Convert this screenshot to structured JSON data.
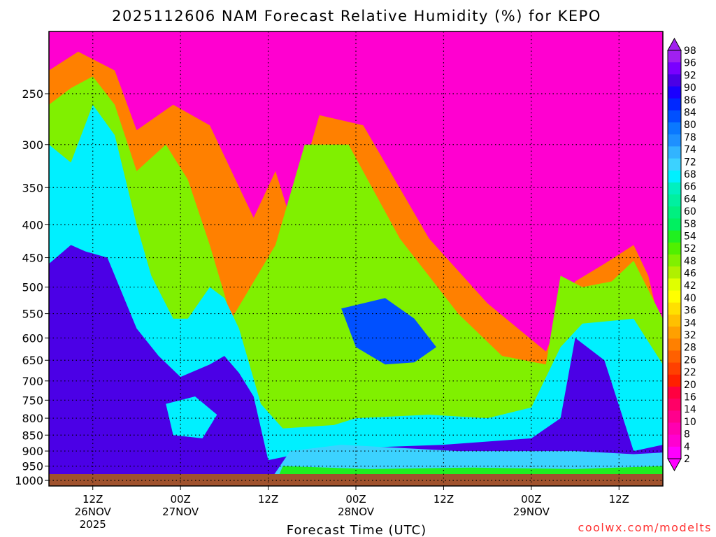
{
  "chart_data": {
    "type": "heatmap",
    "title": "2025112606 NAM Forecast Relative Humidity (%) for KEPO",
    "xlabel": "Forecast Time (UTC)",
    "ylabel": "",
    "y_ticks": [
      "250",
      "300",
      "350",
      "400",
      "450",
      "500",
      "550",
      "600",
      "650",
      "700",
      "750",
      "800",
      "850",
      "900",
      "950",
      "1000"
    ],
    "y_tick_values": [
      250,
      300,
      350,
      400,
      450,
      500,
      550,
      600,
      650,
      700,
      750,
      800,
      850,
      900,
      950,
      1000
    ],
    "ylim": [
      200,
      1020
    ],
    "y_scale": "log",
    "x_ticks": [
      {
        "hours": 6,
        "label": "12Z",
        "date": "26NOV",
        "year": "2025"
      },
      {
        "hours": 18,
        "label": "00Z",
        "date": "27NOV",
        "year": ""
      },
      {
        "hours": 30,
        "label": "12Z",
        "date": "",
        "year": ""
      },
      {
        "hours": 42,
        "label": "00Z",
        "date": "28NOV",
        "year": ""
      },
      {
        "hours": 54,
        "label": "12Z",
        "date": "",
        "year": ""
      },
      {
        "hours": 66,
        "label": "00Z",
        "date": "29NOV",
        "year": ""
      },
      {
        "hours": 78,
        "label": "12Z",
        "date": "",
        "year": ""
      }
    ],
    "xlim": [
      0,
      84
    ],
    "grid": true,
    "colorbar": {
      "position": "right",
      "levels": [
        "98",
        "96",
        "92",
        "90",
        "86",
        "84",
        "80",
        "78",
        "74",
        "72",
        "68",
        "66",
        "64",
        "60",
        "58",
        "54",
        "52",
        "48",
        "46",
        "42",
        "40",
        "36",
        "34",
        "32",
        "28",
        "26",
        "22",
        "20",
        "16",
        "14",
        "10",
        "8",
        "4",
        "2"
      ],
      "colors": [
        "#a020f0",
        "#7a00ff",
        "#4b00e6",
        "#1a00ff",
        "#0028ff",
        "#0050ff",
        "#0a78ff",
        "#1e90ff",
        "#32b4ff",
        "#3cd2ff",
        "#00f0ff",
        "#00f0c0",
        "#00f0a0",
        "#00f080",
        "#00f060",
        "#20f020",
        "#50f000",
        "#80f000",
        "#b0f000",
        "#e0ff00",
        "#ffff00",
        "#ffe000",
        "#ffc000",
        "#ffa000",
        "#ff8000",
        "#ff6000",
        "#ff4000",
        "#ff2000",
        "#ff0040",
        "#ff0066",
        "#ff008c",
        "#ff00b0",
        "#ff00d0",
        "#ff00ff"
      ]
    },
    "ground": {
      "color": "#a0522d"
    },
    "regions": [
      {
        "value": 6,
        "polygon": [
          [
            0,
            200
          ],
          [
            84,
            200
          ],
          [
            84,
            1010
          ],
          [
            0,
            1010
          ]
        ]
      },
      {
        "value": 30,
        "polygon": [
          [
            0,
            230
          ],
          [
            4,
            215
          ],
          [
            9,
            230
          ],
          [
            12,
            285
          ],
          [
            17,
            260
          ],
          [
            22,
            280
          ],
          [
            28,
            390
          ],
          [
            31,
            330
          ],
          [
            33,
            390
          ],
          [
            37,
            270
          ],
          [
            43,
            280
          ],
          [
            52,
            420
          ],
          [
            60,
            530
          ],
          [
            68,
            630
          ],
          [
            72,
            490
          ],
          [
            76,
            460
          ],
          [
            80,
            430
          ],
          [
            82,
            480
          ],
          [
            84,
            600
          ],
          [
            84,
            1010
          ],
          [
            0,
            1010
          ]
        ]
      },
      {
        "value": 50,
        "polygon": [
          [
            0,
            260
          ],
          [
            3,
            245
          ],
          [
            6,
            235
          ],
          [
            9,
            260
          ],
          [
            12,
            330
          ],
          [
            16,
            300
          ],
          [
            19,
            340
          ],
          [
            22,
            430
          ],
          [
            25,
            560
          ],
          [
            31,
            430
          ],
          [
            35,
            300
          ],
          [
            41,
            300
          ],
          [
            48,
            420
          ],
          [
            56,
            550
          ],
          [
            62,
            640
          ],
          [
            68,
            660
          ],
          [
            70,
            480
          ],
          [
            73,
            500
          ],
          [
            77,
            490
          ],
          [
            80,
            455
          ],
          [
            84,
            560
          ],
          [
            84,
            1010
          ],
          [
            0,
            1010
          ]
        ]
      },
      {
        "value": 70,
        "polygon": [
          [
            0,
            300
          ],
          [
            3,
            320
          ],
          [
            6,
            260
          ],
          [
            9,
            290
          ],
          [
            12,
            400
          ],
          [
            14,
            480
          ],
          [
            17,
            560
          ],
          [
            19,
            560
          ],
          [
            22,
            500
          ],
          [
            24,
            520
          ],
          [
            26,
            580
          ],
          [
            29,
            760
          ],
          [
            32,
            830
          ],
          [
            39,
            820
          ],
          [
            42,
            800
          ],
          [
            52,
            790
          ],
          [
            60,
            800
          ],
          [
            66,
            770
          ],
          [
            70,
            620
          ],
          [
            73,
            570
          ],
          [
            80,
            560
          ],
          [
            84,
            660
          ],
          [
            84,
            1010
          ],
          [
            0,
            1010
          ]
        ]
      },
      {
        "value": 95,
        "polygon": [
          [
            0,
            460
          ],
          [
            3,
            430
          ],
          [
            5,
            440
          ],
          [
            8,
            450
          ],
          [
            12,
            580
          ],
          [
            15,
            640
          ],
          [
            18,
            690
          ],
          [
            22,
            660
          ],
          [
            24,
            640
          ],
          [
            26,
            680
          ],
          [
            28,
            740
          ],
          [
            30,
            930
          ],
          [
            36,
            900
          ],
          [
            42,
            890
          ],
          [
            54,
            880
          ],
          [
            66,
            860
          ],
          [
            70,
            800
          ],
          [
            72,
            600
          ],
          [
            76,
            650
          ],
          [
            80,
            900
          ],
          [
            84,
            880
          ],
          [
            84,
            1010
          ],
          [
            0,
            1010
          ]
        ]
      },
      {
        "value": 85,
        "polygon": [
          [
            40,
            540
          ],
          [
            46,
            520
          ],
          [
            50,
            560
          ],
          [
            53,
            620
          ],
          [
            50,
            655
          ],
          [
            46,
            660
          ],
          [
            42,
            620
          ]
        ]
      },
      {
        "value": 70,
        "polygon": [
          [
            16,
            760
          ],
          [
            20,
            740
          ],
          [
            23,
            790
          ],
          [
            21,
            860
          ],
          [
            17,
            850
          ]
        ]
      },
      {
        "value": 72,
        "polygon": [
          [
            33,
            900
          ],
          [
            40,
            880
          ],
          [
            48,
            890
          ],
          [
            56,
            900
          ],
          [
            64,
            900
          ],
          [
            72,
            900
          ],
          [
            80,
            910
          ],
          [
            84,
            905
          ],
          [
            84,
            1010
          ],
          [
            30,
            1010
          ]
        ]
      },
      {
        "value": 55,
        "polygon": [
          [
            32,
            950
          ],
          [
            44,
            960
          ],
          [
            58,
            955
          ],
          [
            72,
            960
          ],
          [
            84,
            950
          ],
          [
            84,
            1010
          ],
          [
            31,
            1010
          ]
        ]
      }
    ]
  },
  "credit": "coolwx.com/modelts"
}
